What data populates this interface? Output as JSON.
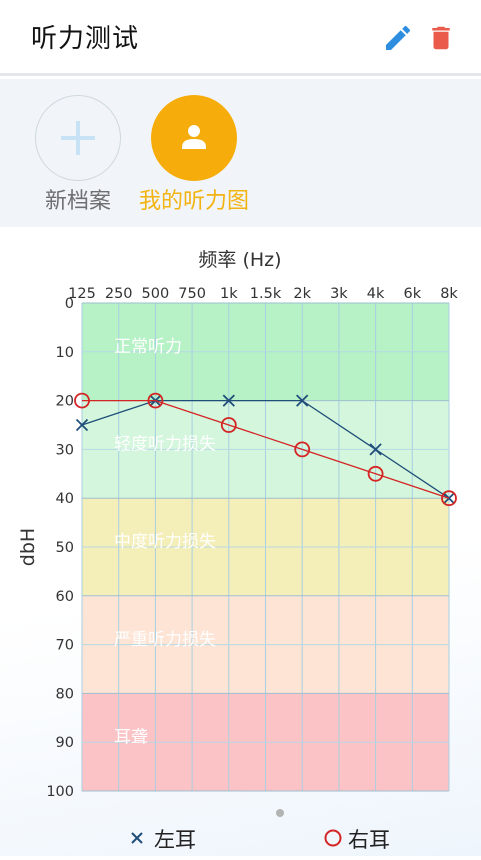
{
  "header": {
    "title": "听力测试"
  },
  "profiles": [
    {
      "label": "新档案",
      "color": "#6d6f73"
    },
    {
      "label": "我的听力图",
      "color": "#f3b312"
    }
  ],
  "chart_data": {
    "type": "line",
    "title": "频率 (Hz)",
    "ylabel": "dbH",
    "x": [
      "125",
      "250",
      "500",
      "750",
      "1k",
      "1.5k",
      "2k",
      "3k",
      "4k",
      "6k",
      "8k"
    ],
    "yticks": [
      0,
      10,
      20,
      30,
      40,
      50,
      60,
      70,
      80,
      90,
      100
    ],
    "ylim": [
      0,
      100
    ],
    "y_inverted": true,
    "bands": [
      {
        "label": "正常听力",
        "from": 0,
        "to": 20,
        "color": "#b6f2c6"
      },
      {
        "label": "轻度听力损失",
        "from": 20,
        "to": 40,
        "color": "#d3f6dc"
      },
      {
        "label": "中度听力损失",
        "from": 40,
        "to": 60,
        "color": "#f4eeb8"
      },
      {
        "label": "严重听力损失",
        "from": 60,
        "to": 80,
        "color": "#fde4d5"
      },
      {
        "label": "耳聋",
        "from": 80,
        "to": 100,
        "color": "#fcc3c6"
      }
    ],
    "series": [
      {
        "name": "左耳",
        "marker": "x",
        "color": "#1f4e79",
        "points": [
          [
            "125",
            25
          ],
          [
            "500",
            20
          ],
          [
            "1k",
            20
          ],
          [
            "2k",
            20
          ],
          [
            "4k",
            30
          ],
          [
            "8k",
            40
          ]
        ]
      },
      {
        "name": "右耳",
        "marker": "o",
        "color": "#d42424",
        "points": [
          [
            "125",
            20
          ],
          [
            "500",
            20
          ],
          [
            "1k",
            25
          ],
          [
            "2k",
            30
          ],
          [
            "4k",
            35
          ],
          [
            "8k",
            40
          ]
        ]
      }
    ],
    "legend_position": "bottom"
  },
  "legend": {
    "left": "左耳",
    "right": "右耳"
  },
  "icons": {
    "edit": "pencil-icon",
    "delete": "trash-icon",
    "add": "plus-icon",
    "person": "person-icon"
  }
}
